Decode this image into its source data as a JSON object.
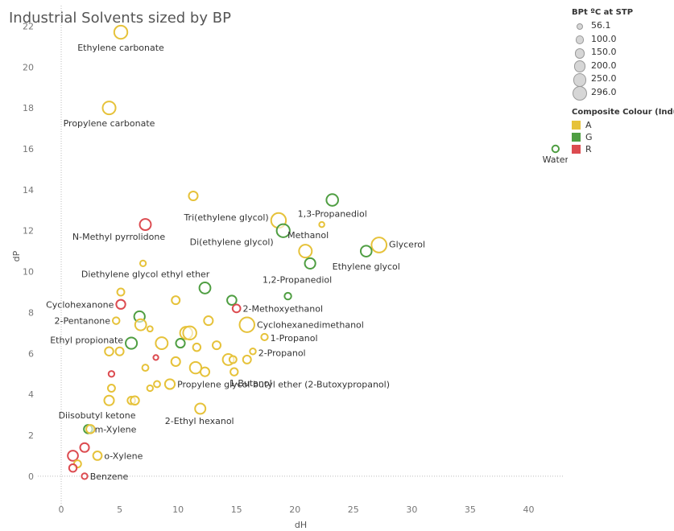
{
  "title": "Industrial Solvents sized by BP",
  "legend_size": {
    "title": "BPt ºC at STP",
    "items": [
      "56.1",
      "100.0",
      "150.0",
      "200.0",
      "250.0",
      "296.0"
    ]
  },
  "legend_color": {
    "title": "Composite Colour (Indust..",
    "items": [
      {
        "label": "A",
        "color": "#e6c23a"
      },
      {
        "label": "G",
        "color": "#4f9e42"
      },
      {
        "label": "R",
        "color": "#dc4b50"
      }
    ]
  },
  "chart_data": {
    "type": "scatter",
    "title": "Industrial Solvents sized by BP",
    "xlabel": "dH",
    "ylabel": "dP",
    "xlim": [
      -2,
      43
    ],
    "ylim": [
      -1.5,
      23
    ],
    "xticks": [
      0,
      5,
      10,
      15,
      20,
      25,
      30,
      35,
      40
    ],
    "yticks": [
      0,
      2,
      4,
      6,
      8,
      10,
      12,
      14,
      16,
      18,
      20,
      22
    ],
    "grid": true,
    "legend_position": "top-right",
    "points": [
      {
        "label": "Ethylene carbonate",
        "x": 5.1,
        "y": 21.7,
        "bp": 248,
        "c": "A"
      },
      {
        "label": "Propylene carbonate",
        "x": 4.1,
        "y": 18.0,
        "bp": 242,
        "c": "A"
      },
      {
        "label": "Water",
        "x": 42.3,
        "y": 16.0,
        "bp": 100,
        "c": "G"
      },
      {
        "label": "",
        "x": 11.3,
        "y": 13.7,
        "bp": 150,
        "c": "A"
      },
      {
        "label": "1,3-Propanediol",
        "x": 23.2,
        "y": 13.5,
        "bp": 214,
        "c": "G"
      },
      {
        "label": "Tri(ethylene glycol)",
        "x": 18.6,
        "y": 12.5,
        "bp": 285,
        "c": "A"
      },
      {
        "label": "N-Methyl pyrrolidone",
        "x": 7.2,
        "y": 12.3,
        "bp": 202,
        "c": "R"
      },
      {
        "label": "Methanol",
        "x": 22.3,
        "y": 12.3,
        "bp": 65,
        "c": "A"
      },
      {
        "label": "Di(ethylene glycol)",
        "x": 19.0,
        "y": 12.0,
        "bp": 245,
        "c": "G"
      },
      {
        "label": "Glycerol",
        "x": 27.2,
        "y": 11.3,
        "bp": 290,
        "c": "A"
      },
      {
        "label": "",
        "x": 20.9,
        "y": 11.0,
        "bp": 240,
        "c": "A"
      },
      {
        "label": "Ethylene glycol",
        "x": 26.1,
        "y": 11.0,
        "bp": 197,
        "c": "G"
      },
      {
        "label": "Diethylene glycol ethyl ether",
        "x": 7.0,
        "y": 10.4,
        "bp": 80,
        "c": "A"
      },
      {
        "label": "1,2-Propanediol",
        "x": 21.3,
        "y": 10.4,
        "bp": 188,
        "c": "G"
      },
      {
        "label": "",
        "x": 12.3,
        "y": 9.2,
        "bp": 200,
        "c": "G"
      },
      {
        "label": "",
        "x": 5.1,
        "y": 9.0,
        "bp": 110,
        "c": "A"
      },
      {
        "label": "",
        "x": 19.4,
        "y": 8.8,
        "bp": 100,
        "c": "G"
      },
      {
        "label": "",
        "x": 9.8,
        "y": 8.6,
        "bp": 130,
        "c": "A"
      },
      {
        "label": "",
        "x": 14.6,
        "y": 8.6,
        "bp": 160,
        "c": "G"
      },
      {
        "label": "Cyclohexanone",
        "x": 5.1,
        "y": 8.4,
        "bp": 155,
        "c": "R"
      },
      {
        "label": "2-Methoxyethanol",
        "x": 15.0,
        "y": 8.2,
        "bp": 125,
        "c": "R"
      },
      {
        "label": "",
        "x": 6.7,
        "y": 7.8,
        "bp": 190,
        "c": "G"
      },
      {
        "label": "2-Pentanone",
        "x": 4.7,
        "y": 7.6,
        "bp": 102,
        "c": "A"
      },
      {
        "label": "",
        "x": 12.6,
        "y": 7.6,
        "bp": 150,
        "c": "A"
      },
      {
        "label": "",
        "x": 6.8,
        "y": 7.4,
        "bp": 200,
        "c": "A"
      },
      {
        "label": "Cyclohexanedimethanol",
        "x": 15.9,
        "y": 7.4,
        "bp": 286,
        "c": "A"
      },
      {
        "label": "",
        "x": 7.6,
        "y": 7.2,
        "bp": 70,
        "c": "A"
      },
      {
        "label": "",
        "x": 10.7,
        "y": 7.0,
        "bp": 230,
        "c": "A"
      },
      {
        "label": "",
        "x": 11.0,
        "y": 7.0,
        "bp": 250,
        "c": "A"
      },
      {
        "label": "1-Propanol",
        "x": 17.4,
        "y": 6.8,
        "bp": 97,
        "c": "A"
      },
      {
        "label": "",
        "x": 8.6,
        "y": 6.5,
        "bp": 220,
        "c": "A"
      },
      {
        "label": "Ethyl propionate",
        "x": 6.0,
        "y": 6.5,
        "bp": 205,
        "c": "G"
      },
      {
        "label": "",
        "x": 10.2,
        "y": 6.5,
        "bp": 150,
        "c": "G"
      },
      {
        "label": "",
        "x": 13.3,
        "y": 6.4,
        "bp": 130,
        "c": "A"
      },
      {
        "label": "",
        "x": 11.6,
        "y": 6.3,
        "bp": 120,
        "c": "A"
      },
      {
        "label": "",
        "x": 4.1,
        "y": 6.1,
        "bp": 140,
        "c": "A"
      },
      {
        "label": "",
        "x": 5.0,
        "y": 6.1,
        "bp": 130,
        "c": "A"
      },
      {
        "label": "2-Propanol",
        "x": 16.4,
        "y": 6.1,
        "bp": 83,
        "c": "A"
      },
      {
        "label": "",
        "x": 8.1,
        "y": 5.8,
        "bp": 60,
        "c": "R"
      },
      {
        "label": "",
        "x": 14.3,
        "y": 5.7,
        "bp": 200,
        "c": "A"
      },
      {
        "label": "",
        "x": 14.7,
        "y": 5.7,
        "bp": 110,
        "c": "A"
      },
      {
        "label": "",
        "x": 15.9,
        "y": 5.7,
        "bp": 130,
        "c": "A"
      },
      {
        "label": "",
        "x": 9.8,
        "y": 5.6,
        "bp": 150,
        "c": "A"
      },
      {
        "label": "",
        "x": 11.5,
        "y": 5.3,
        "bp": 210,
        "c": "A"
      },
      {
        "label": "",
        "x": 7.2,
        "y": 5.3,
        "bp": 90,
        "c": "A"
      },
      {
        "label": "",
        "x": 12.3,
        "y": 5.1,
        "bp": 150,
        "c": "A"
      },
      {
        "label": "1-Butanol",
        "x": 14.8,
        "y": 5.1,
        "bp": 117,
        "c": "A"
      },
      {
        "label": "",
        "x": 4.3,
        "y": 5.0,
        "bp": 80,
        "c": "R"
      },
      {
        "label": "Propylene glycol butyl ether (2-Butoxypropanol)",
        "x": 9.3,
        "y": 4.5,
        "bp": 171,
        "c": "A"
      },
      {
        "label": "",
        "x": 8.2,
        "y": 4.5,
        "bp": 90,
        "c": "A"
      },
      {
        "label": "",
        "x": 7.6,
        "y": 4.3,
        "bp": 80,
        "c": "A"
      },
      {
        "label": "",
        "x": 4.3,
        "y": 4.3,
        "bp": 110,
        "c": "A"
      },
      {
        "label": "",
        "x": 6.0,
        "y": 3.7,
        "bp": 120,
        "c": "A"
      },
      {
        "label": "",
        "x": 6.3,
        "y": 3.7,
        "bp": 140,
        "c": "A"
      },
      {
        "label": "Diisobutyl ketone",
        "x": 4.1,
        "y": 3.7,
        "bp": 168,
        "c": "A"
      },
      {
        "label": "2-Ethyl hexanol",
        "x": 11.9,
        "y": 3.3,
        "bp": 184,
        "c": "A"
      },
      {
        "label": "m-Xylene",
        "x": 2.3,
        "y": 2.3,
        "bp": 139,
        "c": "G"
      },
      {
        "label": "",
        "x": 2.5,
        "y": 2.3,
        "bp": 139,
        "c": "A"
      },
      {
        "label": "",
        "x": 2.0,
        "y": 1.4,
        "bp": 150,
        "c": "R"
      },
      {
        "label": "o-Xylene",
        "x": 3.1,
        "y": 1.0,
        "bp": 144,
        "c": "A"
      },
      {
        "label": "",
        "x": 1.0,
        "y": 1.0,
        "bp": 180,
        "c": "R"
      },
      {
        "label": "",
        "x": 1.4,
        "y": 0.6,
        "bp": 110,
        "c": "A"
      },
      {
        "label": "",
        "x": 1.0,
        "y": 0.4,
        "bp": 120,
        "c": "R"
      },
      {
        "label": "Benzene",
        "x": 2.0,
        "y": 0.0,
        "bp": 80,
        "c": "R"
      }
    ]
  }
}
